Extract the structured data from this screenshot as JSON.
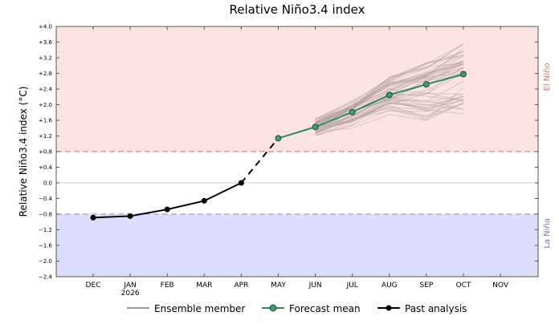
{
  "chart_data": {
    "type": "line",
    "title": "Relative Niño3.4 index",
    "ylabel": "Relative Niño3.4 index (°C)",
    "xlabel": "",
    "ylim": [
      -2.4,
      4.0
    ],
    "grid": false,
    "legend_position": "bottom",
    "x_categories": [
      "DEC",
      "JAN",
      "FEB",
      "MAR",
      "APR",
      "MAY",
      "JUN",
      "JUL",
      "AUG",
      "SEP",
      "OCT",
      "NOV"
    ],
    "x_sublabels": {
      "JAN": "2026"
    },
    "y_ticks": [
      "+4.0",
      "+3.6",
      "+3.2",
      "+2.8",
      "+2.4",
      "+2.0",
      "+1.6",
      "+1.2",
      "+0.8",
      "+0.4",
      "0.0",
      "−0.4",
      "−0.8",
      "−1.2",
      "−1.6",
      "−2.0",
      "−2.4"
    ],
    "y_tick_values": [
      4.0,
      3.6,
      3.2,
      2.8,
      2.4,
      2.0,
      1.6,
      1.2,
      0.8,
      0.4,
      0.0,
      -0.4,
      -0.8,
      -1.2,
      -1.6,
      -2.0,
      -2.4
    ],
    "thresholds": {
      "el_nino": 0.8,
      "la_nina": -0.8
    },
    "region_labels": {
      "el_nino": "El Niño",
      "la_nina": "La Niña"
    },
    "colors": {
      "el_nino_band": "#fde4e2",
      "la_nina_band": "#dcdcfb",
      "el_nino_line": "#e8847e",
      "la_nina_line": "#a3a3b8",
      "el_nino_text": "#e0696a",
      "la_nina_text": "#7878a8",
      "forecast": "#2f8a5e",
      "forecast_marker": "#3f9e6e",
      "past": "#000000",
      "ensemble": "#b3a3a3"
    },
    "series": [
      {
        "name": "Past analysis",
        "x": [
          "DEC",
          "JAN",
          "FEB",
          "MAR",
          "APR"
        ],
        "values": [
          -0.89,
          -0.85,
          -0.68,
          -0.46,
          0.0
        ]
      },
      {
        "name": "Forecast mean",
        "x": [
          "MAY",
          "JUN",
          "JUL",
          "AUG",
          "SEP",
          "OCT"
        ],
        "values": [
          1.14,
          1.43,
          1.81,
          2.25,
          2.52,
          2.78
        ]
      }
    ],
    "bridge": {
      "from": [
        "APR",
        0.0
      ],
      "to": [
        "MAY",
        1.14
      ],
      "style": "dashed"
    },
    "ensemble": {
      "name": "Ensemble member",
      "x": [
        "JUN",
        "JUL",
        "AUG",
        "SEP",
        "OCT"
      ],
      "count": 50,
      "low": [
        1.2,
        1.4,
        1.75,
        1.45,
        1.6
      ],
      "high": [
        1.65,
        2.1,
        2.75,
        3.1,
        3.55
      ]
    },
    "legend": [
      "Ensemble member",
      "Forecast mean",
      "Past analysis"
    ]
  }
}
